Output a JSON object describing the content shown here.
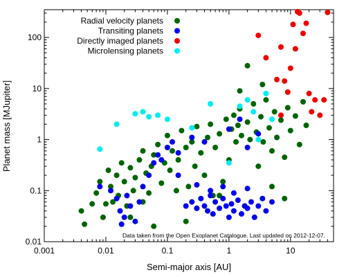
{
  "chart_data": {
    "type": "scatter",
    "xlabel": "Semi-major axis [AU]",
    "ylabel": "Planet mass [MJupiter]",
    "xscale": "log",
    "yscale": "log",
    "xlim": [
      0.001,
      50
    ],
    "ylim": [
      0.01,
      350
    ],
    "grid": false,
    "legend_position": "top-right",
    "annotation": "Data taken from the Open Exoplanet Catalogue. Last updated on 2012-12-07.",
    "x_ticks": [
      "0.001",
      "0.01",
      "0.1",
      "1",
      "10"
    ],
    "y_ticks": [
      "0.01",
      "0.1",
      "1",
      "10",
      "100"
    ],
    "series": [
      {
        "name": "Radial velocity planets",
        "color": "#006400",
        "points": [
          [
            0.004,
            0.04
          ],
          [
            0.0045,
            0.022
          ],
          [
            0.006,
            0.055
          ],
          [
            0.007,
            0.09
          ],
          [
            0.008,
            0.15
          ],
          [
            0.009,
            0.03
          ],
          [
            0.01,
            0.055
          ],
          [
            0.011,
            0.25
          ],
          [
            0.012,
            0.12
          ],
          [
            0.013,
            0.06
          ],
          [
            0.015,
            0.2
          ],
          [
            0.016,
            0.08
          ],
          [
            0.018,
            0.35
          ],
          [
            0.02,
            0.15
          ],
          [
            0.022,
            0.05
          ],
          [
            0.025,
            0.28
          ],
          [
            0.028,
            0.1
          ],
          [
            0.03,
            0.18
          ],
          [
            0.035,
            0.4
          ],
          [
            0.04,
            0.6
          ],
          [
            0.045,
            0.22
          ],
          [
            0.05,
            0.09
          ],
          [
            0.055,
            0.3
          ],
          [
            0.06,
            0.5
          ],
          [
            0.07,
            0.8
          ],
          [
            0.08,
            0.14
          ],
          [
            0.09,
            0.35
          ],
          [
            0.1,
            1.2
          ],
          [
            0.11,
            0.25
          ],
          [
            0.12,
            0.6
          ],
          [
            0.14,
            0.1
          ],
          [
            0.15,
            0.4
          ],
          [
            0.17,
            1.5
          ],
          [
            0.2,
            0.7
          ],
          [
            0.22,
            0.12
          ],
          [
            0.25,
            0.9
          ],
          [
            0.28,
            0.3
          ],
          [
            0.3,
            1.8
          ],
          [
            0.35,
            0.55
          ],
          [
            0.4,
            0.2
          ],
          [
            0.45,
            1.1
          ],
          [
            0.5,
            2.0
          ],
          [
            0.55,
            0.08
          ],
          [
            0.6,
            0.7
          ],
          [
            0.7,
            1.3
          ],
          [
            0.8,
            0.15
          ],
          [
            0.9,
            2.5
          ],
          [
            1.0,
            0.4
          ],
          [
            1.1,
            1.6
          ],
          [
            1.2,
            3.0
          ],
          [
            1.3,
            0.9
          ],
          [
            1.4,
            1.9
          ],
          [
            1.5,
            4.0
          ],
          [
            1.6,
            1.2
          ],
          [
            1.8,
            0.05
          ],
          [
            2.0,
            2.2
          ],
          [
            2.2,
            1.0
          ],
          [
            2.5,
            5.0
          ],
          [
            2.8,
            1.4
          ],
          [
            3.0,
            0.3
          ],
          [
            3.3,
            2.8
          ],
          [
            3.6,
            0.9
          ],
          [
            4.0,
            6.0
          ],
          [
            4.5,
            1.7
          ],
          [
            5.0,
            0.6
          ],
          [
            5.5,
            3.5
          ],
          [
            6.0,
            1.1
          ],
          [
            7.0,
            2.4
          ],
          [
            8.0,
            0.45
          ],
          [
            9.0,
            4.2
          ],
          [
            10.0,
            1.5
          ],
          [
            12.0,
            2.9
          ],
          [
            14.0,
            0.8
          ],
          [
            16.0,
            5.5
          ],
          [
            18.0,
            1.9
          ],
          [
            2.0,
            28.0
          ],
          [
            3.5,
            12.0
          ],
          [
            1.5,
            9.0
          ],
          [
            0.2,
            0.025
          ],
          [
            0.3,
            0.045
          ],
          [
            0.06,
            0.02
          ],
          [
            0.025,
            0.03
          ],
          [
            0.04,
            0.06
          ],
          [
            0.7,
            0.08
          ],
          [
            5.0,
            0.12
          ],
          [
            8.0,
            0.07
          ]
        ]
      },
      {
        "name": "Transiting planets",
        "color": "#0000ee",
        "points": [
          [
            0.008,
            0.12
          ],
          [
            0.012,
            0.1
          ],
          [
            0.015,
            0.07
          ],
          [
            0.017,
            0.04
          ],
          [
            0.018,
            0.022
          ],
          [
            0.02,
            0.03
          ],
          [
            0.022,
            0.08
          ],
          [
            0.025,
            0.05
          ],
          [
            0.03,
            0.025
          ],
          [
            0.035,
            0.06
          ],
          [
            0.04,
            0.12
          ],
          [
            0.05,
            0.2
          ],
          [
            0.06,
            0.35
          ],
          [
            0.07,
            0.5
          ],
          [
            0.08,
            0.4
          ],
          [
            0.1,
            0.7
          ],
          [
            0.12,
            0.9
          ],
          [
            0.15,
            0.55
          ],
          [
            0.2,
            0.05
          ],
          [
            0.25,
            0.06
          ],
          [
            0.3,
            0.045
          ],
          [
            0.35,
            0.07
          ],
          [
            0.4,
            0.05
          ],
          [
            0.45,
            0.04
          ],
          [
            0.5,
            0.08
          ],
          [
            0.55,
            0.035
          ],
          [
            0.6,
            0.06
          ],
          [
            0.7,
            0.045
          ],
          [
            0.8,
            0.07
          ],
          [
            0.9,
            0.05
          ],
          [
            1.0,
            0.03
          ],
          [
            1.1,
            0.055
          ],
          [
            1.2,
            0.04
          ],
          [
            1.4,
            0.065
          ],
          [
            1.6,
            0.035
          ],
          [
            1.8,
            0.05
          ],
          [
            2.0,
            0.045
          ],
          [
            2.3,
            0.06
          ],
          [
            2.6,
            0.03
          ],
          [
            3.0,
            0.05
          ],
          [
            3.5,
            0.07
          ],
          [
            4.0,
            0.04
          ],
          [
            5.0,
            0.06
          ],
          [
            0.3,
            0.13
          ],
          [
            0.5,
            0.1
          ],
          [
            0.8,
            0.12
          ],
          [
            1.2,
            0.09
          ],
          [
            2.0,
            0.11
          ],
          [
            0.25,
            1.1
          ],
          [
            0.4,
            0.9
          ],
          [
            1.0,
            1.6
          ],
          [
            1.5,
            2.5
          ],
          [
            2.0,
            0.7
          ],
          [
            3.0,
            1.3
          ],
          [
            0.15,
            0.2
          ]
        ]
      },
      {
        "name": "Directly imaged planets",
        "color": "#ee0000",
        "points": [
          [
            3.0,
            110
          ],
          [
            4.0,
            40
          ],
          [
            6.0,
            15
          ],
          [
            7.0,
            65
          ],
          [
            8.0,
            14
          ],
          [
            9.0,
            8.5
          ],
          [
            10.0,
            25
          ],
          [
            11.0,
            180
          ],
          [
            12.0,
            60
          ],
          [
            13.0,
            320
          ],
          [
            14.0,
            300
          ],
          [
            16.0,
            120
          ],
          [
            18.0,
            190
          ],
          [
            20.0,
            8.0
          ],
          [
            22.0,
            3.5
          ],
          [
            25.0,
            6.0
          ],
          [
            30.0,
            3.0
          ],
          [
            35.0,
            6.0
          ],
          [
            40.0,
            310
          ],
          [
            7.0,
            3.0
          ]
        ]
      },
      {
        "name": "Microlensing planets",
        "color": "#00eeee",
        "points": [
          [
            0.008,
            0.65
          ],
          [
            0.015,
            2.0
          ],
          [
            0.03,
            3.2
          ],
          [
            0.04,
            3.5
          ],
          [
            0.05,
            2.8
          ],
          [
            0.07,
            3.0
          ],
          [
            0.1,
            2.5
          ],
          [
            0.25,
            1.7
          ],
          [
            0.5,
            5.0
          ],
          [
            1.0,
            0.35
          ],
          [
            1.5,
            4.5
          ],
          [
            2.0,
            6.0
          ],
          [
            2.5,
            3.5
          ],
          [
            3.0,
            1.0
          ],
          [
            4.0,
            8.0
          ],
          [
            5.0,
            2.5
          ]
        ]
      }
    ]
  }
}
